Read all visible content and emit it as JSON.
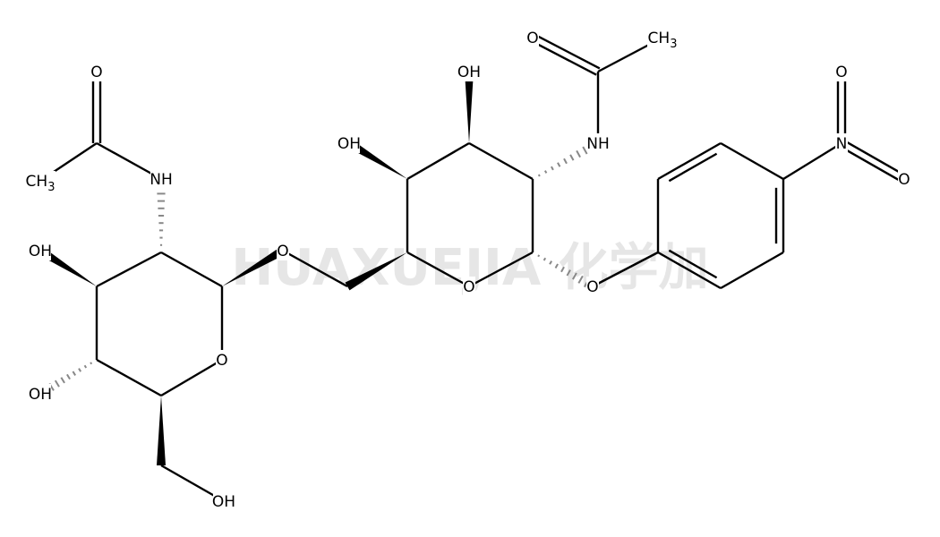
{
  "atoms": [
    {
      "label": "O"
    },
    {
      "label": "CH3"
    },
    {
      "label": "NH"
    },
    {
      "label": "OH"
    },
    {
      "label": "OH"
    },
    {
      "label": "OH"
    },
    {
      "label": "O"
    },
    {
      "label": "O"
    },
    {
      "label": "O"
    },
    {
      "label": "O"
    },
    {
      "label": "NH"
    },
    {
      "label": "OH"
    },
    {
      "label": "OH"
    },
    {
      "label": "O"
    },
    {
      "label": "CH3"
    },
    {
      "label": "N"
    },
    {
      "label": "O"
    },
    {
      "label": "O"
    }
  ],
  "watermark": "HUAXUEJIA 化学加"
}
